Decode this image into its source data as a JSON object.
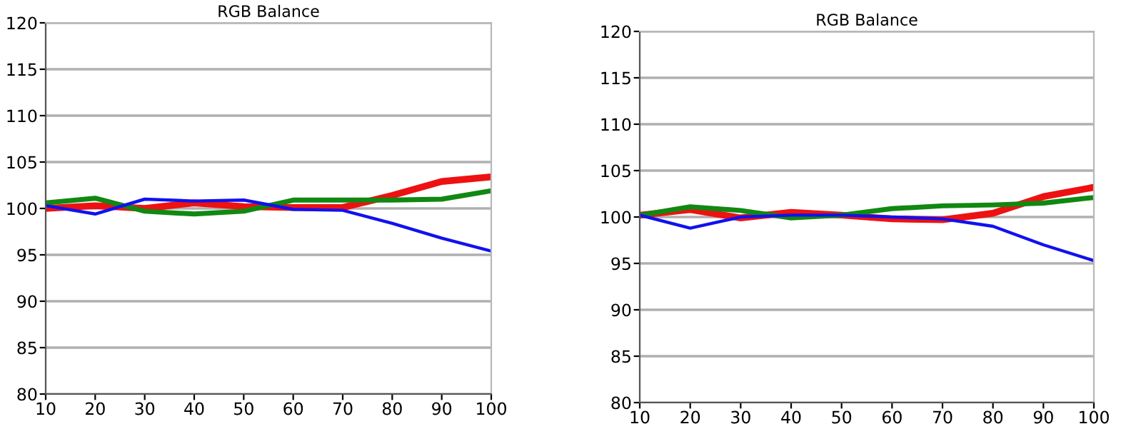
{
  "chart_data": [
    {
      "type": "line",
      "title": "RGB Balance",
      "x": [
        10,
        20,
        30,
        40,
        50,
        60,
        70,
        80,
        90,
        100
      ],
      "xlim": [
        10,
        100
      ],
      "xticks": [
        10,
        20,
        30,
        40,
        50,
        60,
        70,
        80,
        90,
        100
      ],
      "ylim": [
        80,
        120
      ],
      "yticks": [
        80,
        85,
        90,
        95,
        100,
        105,
        110,
        115,
        120
      ],
      "grid": "y",
      "series": [
        {
          "color": "#ee1111",
          "values": [
            100.0,
            100.3,
            100.0,
            100.6,
            100.2,
            100.1,
            100.1,
            101.4,
            102.9,
            103.4
          ]
        },
        {
          "color": "#118811",
          "values": [
            100.6,
            101.1,
            99.7,
            99.4,
            99.7,
            100.9,
            100.9,
            100.9,
            101.0,
            101.9
          ]
        },
        {
          "color": "#1111ee",
          "values": [
            100.3,
            99.4,
            101.0,
            100.8,
            100.9,
            99.9,
            99.8,
            98.4,
            96.8,
            95.4
          ]
        }
      ]
    },
    {
      "type": "line",
      "title": "RGB Balance",
      "x": [
        10,
        20,
        30,
        40,
        50,
        60,
        70,
        80,
        90,
        100
      ],
      "xlim": [
        10,
        100
      ],
      "xticks": [
        10,
        20,
        30,
        40,
        50,
        60,
        70,
        80,
        90,
        100
      ],
      "ylim": [
        80,
        120
      ],
      "yticks": [
        80,
        85,
        90,
        95,
        100,
        105,
        110,
        115,
        120
      ],
      "grid": "y",
      "series": [
        {
          "color": "#ee1111",
          "values": [
            100.2,
            100.8,
            99.9,
            100.5,
            100.2,
            99.8,
            99.7,
            100.4,
            102.2,
            103.2
          ]
        },
        {
          "color": "#118811",
          "values": [
            100.2,
            101.1,
            100.7,
            99.9,
            100.2,
            100.9,
            101.2,
            101.3,
            101.5,
            102.1
          ]
        },
        {
          "color": "#1111ee",
          "values": [
            100.2,
            98.8,
            100.0,
            100.2,
            100.2,
            100.0,
            99.8,
            99.0,
            97.0,
            95.3
          ]
        }
      ]
    }
  ]
}
